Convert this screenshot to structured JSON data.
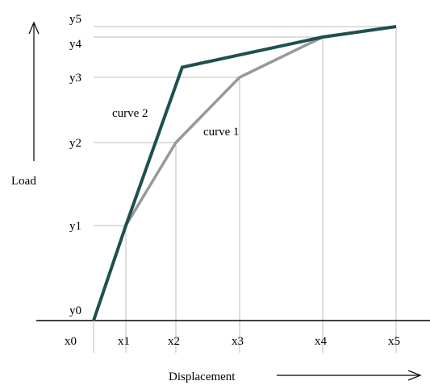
{
  "chart_data": {
    "type": "line",
    "x_ticks": [
      "x0",
      "x1",
      "x2",
      "x3",
      "x4",
      "x5"
    ],
    "y_ticks": [
      "y0",
      "y1",
      "y2",
      "y3",
      "y4",
      "y5"
    ],
    "xlabel": "Displacement",
    "ylabel": "Load",
    "series": [
      {
        "name": "curve 1",
        "color": "#999999",
        "points": [
          [
            0,
            0
          ],
          [
            1,
            1
          ],
          [
            2,
            2
          ],
          [
            3,
            3
          ],
          [
            4,
            4
          ],
          [
            5,
            5
          ]
        ]
      },
      {
        "name": "curve 2",
        "color": "#1f4f4f",
        "points": [
          [
            0,
            0
          ],
          [
            1,
            1
          ],
          [
            2.1,
            3.25
          ],
          [
            4,
            4
          ],
          [
            5,
            5
          ]
        ]
      }
    ],
    "gridlines": "dashed guides from each curve-1 point to the axes",
    "axes_arrows": true
  }
}
